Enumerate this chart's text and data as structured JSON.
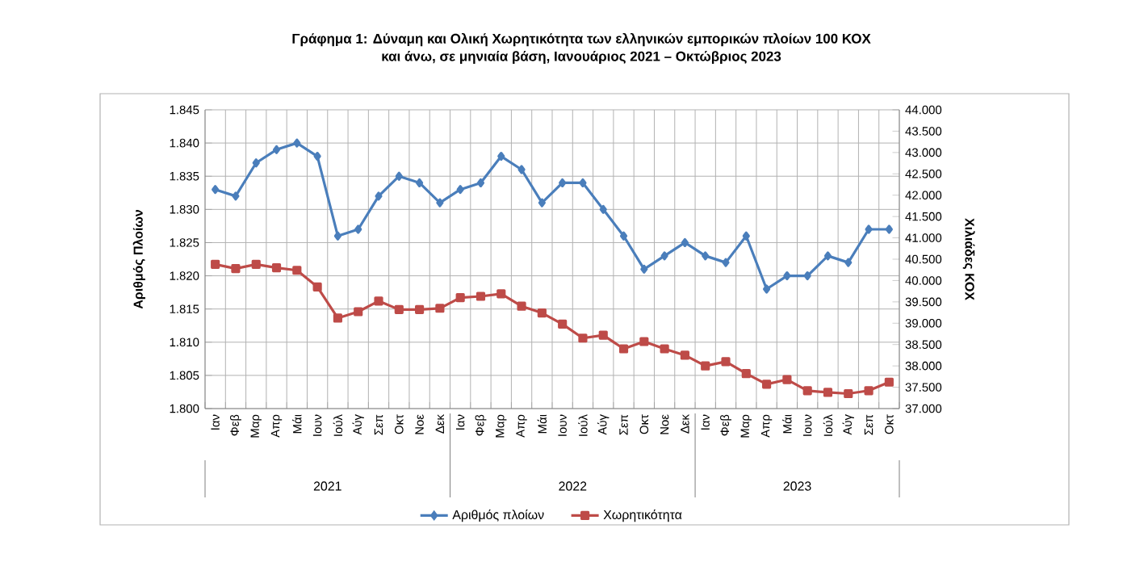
{
  "chart_data": {
    "type": "line",
    "title": "Γράφημα 1: Δύναμη και Ολική Χωρητικότητα των ελληνικών εμπορικών πλοίων 100 ΚΟΧ\nκαι άνω, σε μηνιαία βάση, Ιανουάριος 2021 – Οκτώβριος 2023",
    "ylabel": "Αριθμός Πλοίων",
    "y2label": "Χιλιάδες ΚΟΧ",
    "categories": [
      "Ιαν",
      "Φεβ",
      "Μαρ",
      "Απρ",
      "Μάι",
      "Ιουν",
      "Ιούλ",
      "Αύγ",
      "Σεπ",
      "Οκτ",
      "Νοε",
      "Δεκ",
      "Ιαν",
      "Φεβ",
      "Μαρ",
      "Απρ",
      "Μάι",
      "Ιουν",
      "Ιούλ",
      "Αύγ",
      "Σεπ",
      "Οκτ",
      "Νοε",
      "Δεκ",
      "Ιαν",
      "Φεβ",
      "Μαρ",
      "Απρ",
      "Μάι",
      "Ιουν",
      "Ιούλ",
      "Αύγ",
      "Σεπ",
      "Οκτ"
    ],
    "annotations": [
      "2021",
      "2022",
      "2023"
    ],
    "series": [
      {
        "name": "Αριθμός πλοίων",
        "color": "#4a7ebb",
        "marker": "diamond",
        "values": [
          1833,
          1832,
          1837,
          1839,
          1840,
          1838,
          1826,
          1827,
          1832,
          1835,
          1834,
          1831,
          1833,
          1834,
          1838,
          1836,
          1831,
          1834,
          1834,
          1830,
          1826,
          1821,
          1823,
          1825,
          1823,
          1822,
          1826,
          1818,
          1820,
          1820,
          1823,
          1822,
          1827,
          1827
        ]
      },
      {
        "name": "Χωρητικότητα",
        "color": "#be4b48",
        "marker": "square",
        "axis": "y2",
        "values": [
          40380,
          40280,
          40380,
          40300,
          40240,
          39850,
          39120,
          39270,
          39520,
          39320,
          39320,
          39350,
          39600,
          39630,
          39690,
          39400,
          39240,
          38980,
          38650,
          38720,
          38400,
          38570,
          38400,
          38250,
          38000,
          38100,
          37820,
          37570,
          37680,
          37420,
          37380,
          37350,
          37420,
          37620
        ]
      }
    ],
    "ylim": [
      1800,
      1845
    ],
    "yticks": [
      {
        "value": 1800,
        "label": "1.800"
      },
      {
        "value": 1805,
        "label": "1.805"
      },
      {
        "value": 1810,
        "label": "1.810"
      },
      {
        "value": 1815,
        "label": "1.815"
      },
      {
        "value": 1820,
        "label": "1.820"
      },
      {
        "value": 1825,
        "label": "1.825"
      },
      {
        "value": 1830,
        "label": "1.830"
      },
      {
        "value": 1835,
        "label": "1.835"
      },
      {
        "value": 1840,
        "label": "1.840"
      },
      {
        "value": 1845,
        "label": "1.845"
      }
    ],
    "y2lim": [
      37000,
      44000
    ],
    "y2ticks": [
      {
        "value": 37000,
        "label": "37.000"
      },
      {
        "value": 37500,
        "label": "37.500"
      },
      {
        "value": 38000,
        "label": "38.000"
      },
      {
        "value": 38500,
        "label": "38.500"
      },
      {
        "value": 39000,
        "label": "39.000"
      },
      {
        "value": 39500,
        "label": "39.500"
      },
      {
        "value": 40000,
        "label": "40.000"
      },
      {
        "value": 40500,
        "label": "40.500"
      },
      {
        "value": 41000,
        "label": "41.000"
      },
      {
        "value": 41500,
        "label": "41.500"
      },
      {
        "value": 42000,
        "label": "42.000"
      },
      {
        "value": 42500,
        "label": "42.500"
      },
      {
        "value": 43000,
        "label": "43.000"
      },
      {
        "value": 43500,
        "label": "43.500"
      },
      {
        "value": 44000,
        "label": "44.000"
      }
    ],
    "grid": true,
    "legend": "bottom",
    "line_style": "solid"
  }
}
